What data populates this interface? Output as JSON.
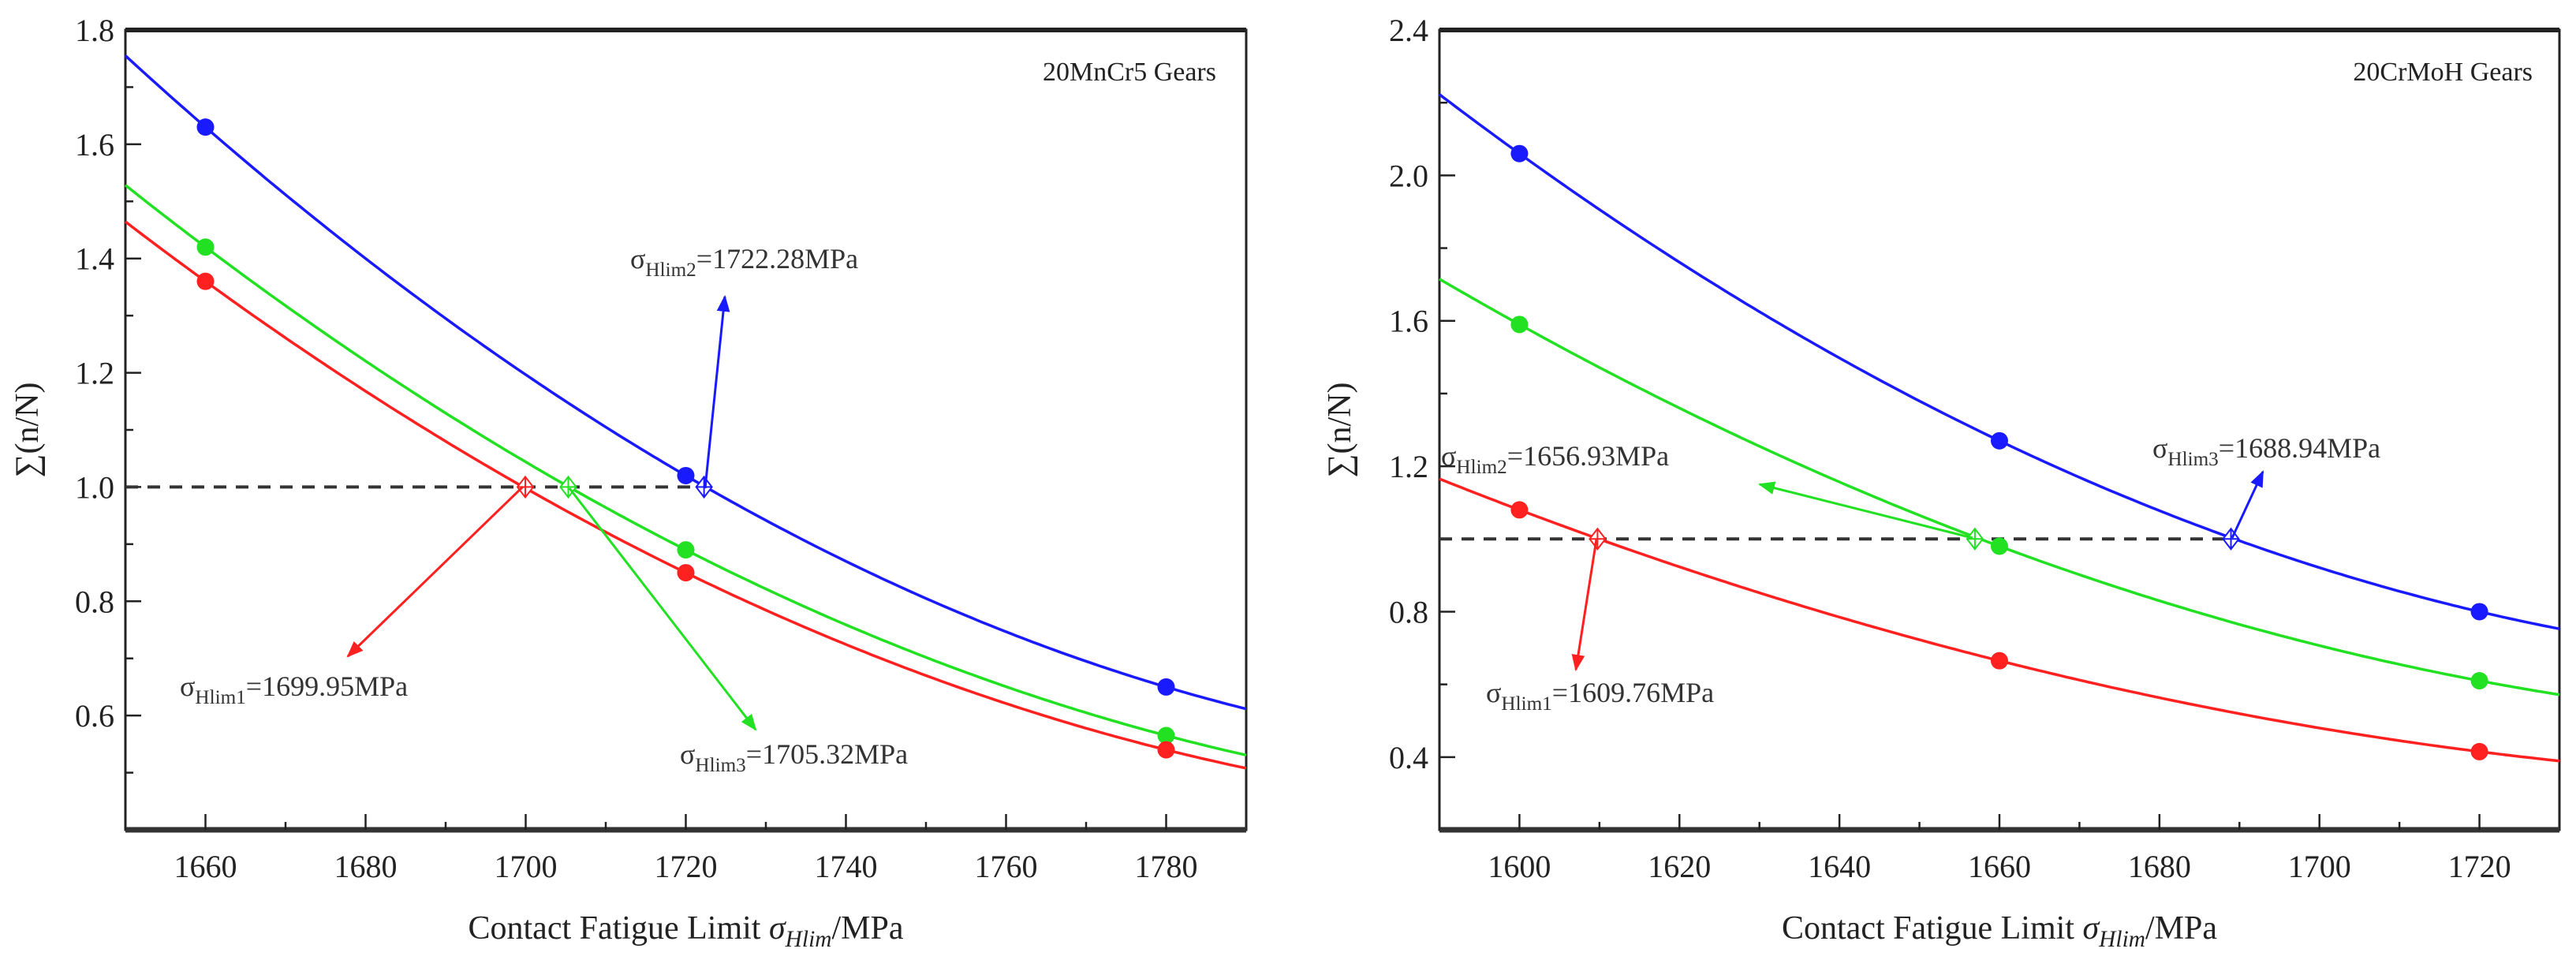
{
  "colors": {
    "blue": "#1a1aff",
    "green": "#22e022",
    "red": "#ff2020",
    "axis": "#222222",
    "dash": "#333333"
  },
  "chart_data": [
    {
      "type": "line",
      "title": "20MnCr5 Gears",
      "xlabel": {
        "prefix": "Contact Fatigue Limit ",
        "symbol": "σ",
        "sub": "Hlim",
        "suffix": "/MPa"
      },
      "ylabel": "∑(n/N)",
      "xlim": [
        1650,
        1790
      ],
      "ylim": [
        0.4,
        1.8
      ],
      "xticks": [
        1660,
        1680,
        1700,
        1720,
        1740,
        1760,
        1780
      ],
      "yticks": [
        0.6,
        0.8,
        1.0,
        1.2,
        1.4,
        1.6,
        1.8
      ],
      "xminor": 10,
      "yminor": 0.1,
      "reference_line": 1.0,
      "x": [
        1660,
        1720,
        1780
      ],
      "series": [
        {
          "name": "blue",
          "color": "blue",
          "values": [
            1.63,
            1.02,
            0.65
          ]
        },
        {
          "name": "green",
          "color": "green",
          "values": [
            1.42,
            0.89,
            0.565
          ]
        },
        {
          "name": "red",
          "color": "red",
          "values": [
            1.36,
            0.85,
            0.54
          ]
        }
      ],
      "annotations": [
        {
          "color": "red",
          "x": 1699.95,
          "y": 1.0,
          "symbol": "σ",
          "sub": "Hlim1",
          "text": "=1699.95MPa"
        },
        {
          "color": "blue",
          "x": 1722.28,
          "y": 1.0,
          "symbol": "σ",
          "sub": "Hlim2",
          "text": "=1722.28MPa"
        },
        {
          "color": "green",
          "x": 1705.32,
          "y": 1.0,
          "symbol": "σ",
          "sub": "Hlim3",
          "text": "=1705.32MPa"
        }
      ]
    },
    {
      "type": "line",
      "title": "20CrMoH Gears",
      "xlabel": {
        "prefix": "Contact Fatigue Limit ",
        "symbol": "σ",
        "sub": "Hlim",
        "suffix": "/MPa"
      },
      "ylabel": "∑(n/N)",
      "xlim": [
        1590,
        1730
      ],
      "ylim": [
        0.2,
        2.4
      ],
      "xticks": [
        1600,
        1620,
        1640,
        1660,
        1680,
        1700,
        1720
      ],
      "yticks": [
        0.4,
        0.8,
        1.2,
        1.6,
        2.0,
        2.4
      ],
      "xminor": 10,
      "yminor": 0.2,
      "reference_line": 1.0,
      "x": [
        1600,
        1660,
        1720
      ],
      "series": [
        {
          "name": "blue",
          "color": "blue",
          "values": [
            2.06,
            1.27,
            0.8
          ]
        },
        {
          "name": "green",
          "color": "green",
          "values": [
            1.59,
            0.98,
            0.61
          ]
        },
        {
          "name": "red",
          "color": "red",
          "values": [
            1.08,
            0.665,
            0.415
          ]
        }
      ],
      "annotations": [
        {
          "color": "red",
          "x": 1609.76,
          "y": 1.0,
          "symbol": "σ",
          "sub": "Hlim1",
          "text": "=1609.76MPa"
        },
        {
          "color": "green",
          "x": 1656.93,
          "y": 1.0,
          "symbol": "σ",
          "sub": "Hlim2",
          "text": "=1656.93MPa"
        },
        {
          "color": "blue",
          "x": 1688.94,
          "y": 1.0,
          "symbol": "σ",
          "sub": "Hlim3",
          "text": "=1688.94MPa"
        }
      ]
    }
  ]
}
